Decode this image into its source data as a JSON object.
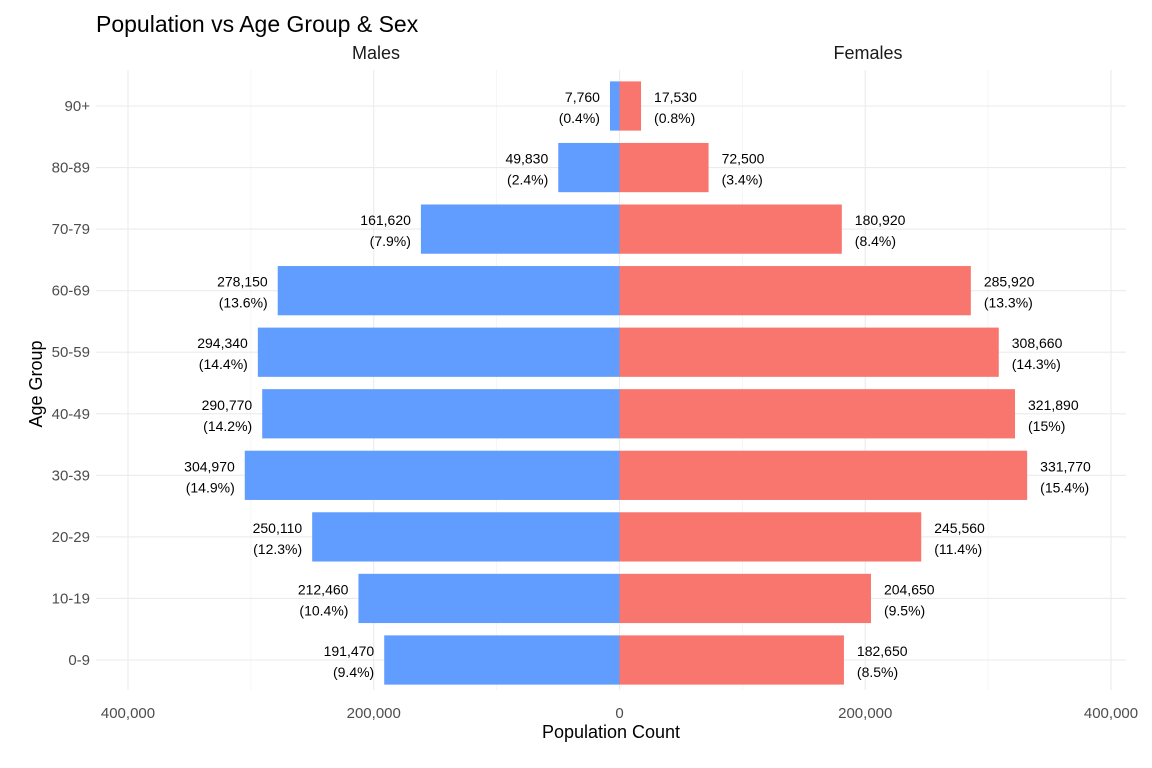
{
  "chart_data": {
    "type": "bar",
    "orientation": "horizontal",
    "title": "Population vs Age Group & Sex",
    "xlabel": "Population Count",
    "ylabel": "Age Group",
    "categories": [
      "0-9",
      "10-19",
      "20-29",
      "30-39",
      "40-49",
      "50-59",
      "60-69",
      "70-79",
      "80-89",
      "90+"
    ],
    "xlim": [
      -400000,
      400000
    ],
    "x_ticks": [
      -400000,
      -200000,
      0,
      200000,
      400000
    ],
    "x_tick_labels": [
      "400,000",
      "200,000",
      "0",
      "200,000",
      "400,000"
    ],
    "grid": true,
    "series": [
      {
        "name": "Males",
        "color": "#619CFF",
        "values": [
          191470,
          212460,
          250110,
          304970,
          290770,
          294340,
          278150,
          161620,
          49830,
          7760
        ],
        "count_labels": [
          "191,470",
          "212,460",
          "250,110",
          "304,970",
          "290,770",
          "294,340",
          "278,150",
          "161,620",
          "49,830",
          "7,760"
        ],
        "pct_labels": [
          "(9.4%)",
          "(10.4%)",
          "(12.3%)",
          "(14.9%)",
          "(14.2%)",
          "(14.4%)",
          "(13.6%)",
          "(7.9%)",
          "(2.4%)",
          "(0.4%)"
        ]
      },
      {
        "name": "Females",
        "color": "#F8766D",
        "values": [
          182650,
          204650,
          245560,
          331770,
          321890,
          308660,
          285920,
          180920,
          72500,
          17530
        ],
        "count_labels": [
          "182,650",
          "204,650",
          "245,560",
          "331,770",
          "321,890",
          "308,660",
          "285,920",
          "180,920",
          "72,500",
          "17,530"
        ],
        "pct_labels": [
          "(8.5%)",
          "(9.5%)",
          "(11.4%)",
          "(15.4%)",
          "(15%)",
          "(14.3%)",
          "(13.3%)",
          "(8.4%)",
          "(3.4%)",
          "(0.8%)"
        ]
      }
    ]
  }
}
